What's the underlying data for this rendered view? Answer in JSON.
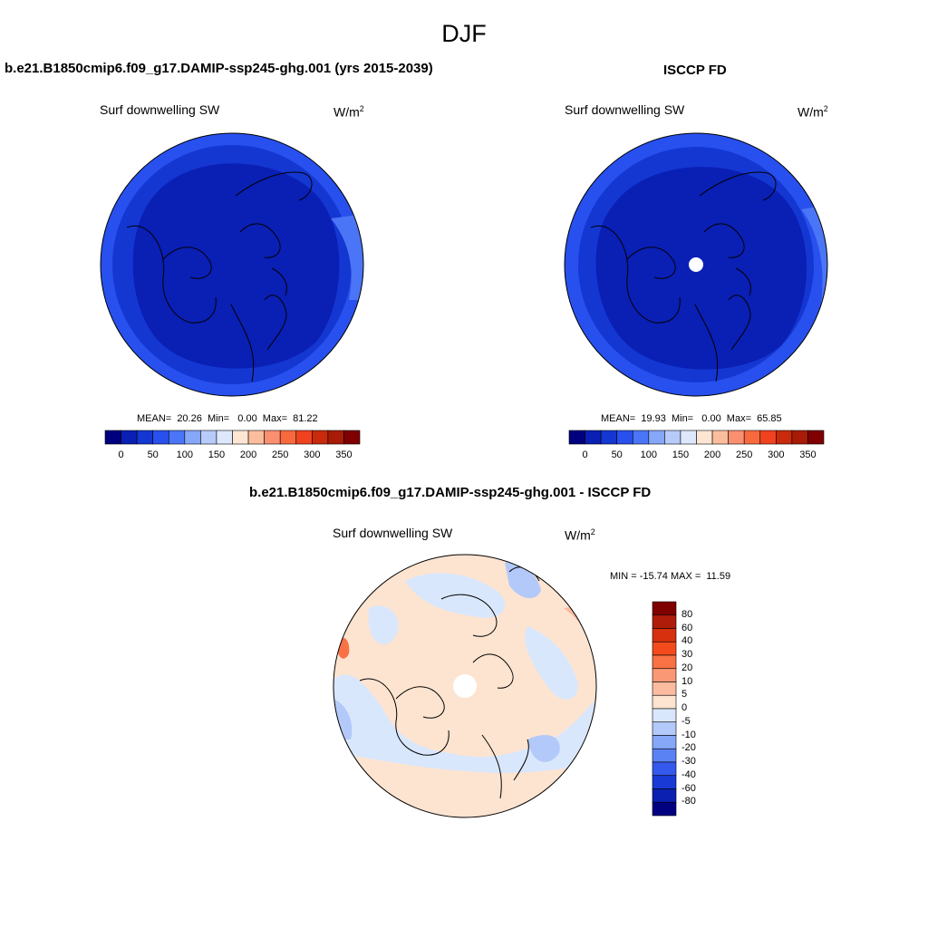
{
  "season": "DJF",
  "panels": {
    "model": {
      "title": "b.e21.B1850cmip6.f09_g17.DAMIP-ssp245-ghg.001 (yrs 2015-2039)",
      "variable": "Surf downwelling SW",
      "units_base": "W/m",
      "units_exp": "2",
      "stats": "MEAN=  20.26  Min=   0.00  Max=  81.22"
    },
    "obs": {
      "title": "ISCCP FD",
      "variable": "Surf downwelling SW",
      "units_base": "W/m",
      "units_exp": "2",
      "stats": "MEAN=  19.93  Min=   0.00  Max=  65.85"
    },
    "diff": {
      "title": "b.e21.B1850cmip6.f09_g17.DAMIP-ssp245-ghg.001 - ISCCP FD",
      "variable": "Surf downwelling SW",
      "units_base": "W/m",
      "units_exp": "2",
      "stats": "MIN = -15.74 MAX =  11.59"
    }
  },
  "colorbar_abs": {
    "colors": [
      "#00007f",
      "#0a1fb4",
      "#1437d2",
      "#2850ee",
      "#4a75f6",
      "#86a6f8",
      "#b7cbfb",
      "#dde8fd",
      "#fde5d3",
      "#fbbd9c",
      "#fa9070",
      "#f86a3e",
      "#f0421e",
      "#c92a0c",
      "#a81b07",
      "#7f0000"
    ],
    "ticks": [
      "0",
      "50",
      "100",
      "150",
      "200",
      "250",
      "300",
      "350"
    ]
  },
  "colorbar_diff": {
    "colors": [
      "#7f0000",
      "#b01c0a",
      "#d6300f",
      "#f34b1c",
      "#f97246",
      "#fa9875",
      "#fbbba1",
      "#fde4d0",
      "#d9e7fc",
      "#b3c9fa",
      "#86a6f8",
      "#5b82f5",
      "#3558ed",
      "#1a3ad6",
      "#0b20b0",
      "#000080"
    ],
    "ticks": [
      "80",
      "60",
      "40",
      "30",
      "20",
      "10",
      "5",
      "0",
      "-5",
      "-10",
      "-20",
      "-30",
      "-40",
      "-60",
      "-80"
    ]
  },
  "map_colors": {
    "abs_outer": "#2850ee",
    "abs_mid": "#1437d2",
    "abs_inner": "#0a1fb4",
    "abs_light": "#4a75f6",
    "diff_base": "#fde4d0",
    "diff_blue": "#d9e7fc",
    "diff_blue2": "#b3c9fa",
    "diff_orange": "#fbbba1",
    "diff_red": "#f97246"
  }
}
